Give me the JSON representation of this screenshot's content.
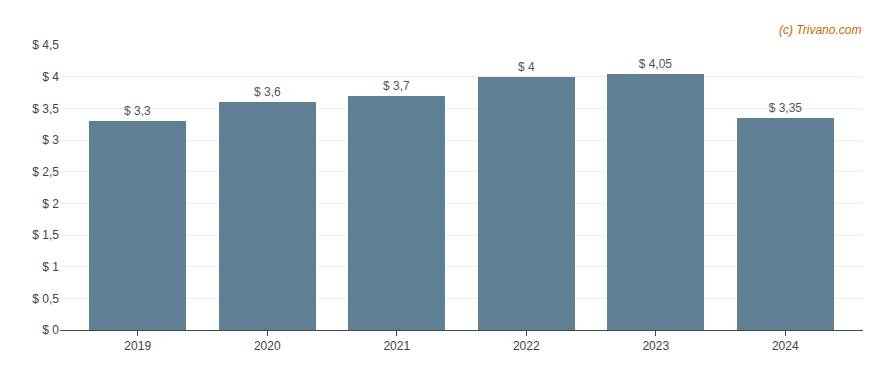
{
  "chart_data": {
    "type": "bar",
    "x": [
      2019,
      2020,
      2021,
      2022,
      2023,
      2024
    ],
    "values": [
      3.3,
      3.6,
      3.7,
      4.0,
      4.05,
      3.35
    ],
    "value_labels": [
      "$ 3,3",
      "$ 3,6",
      "$ 3,7",
      "$ 4",
      "$ 4,05",
      "$ 3,35"
    ],
    "data_labels": true,
    "color": "#5f7f93",
    "xlim": [
      2018.4,
      2024.6
    ],
    "xticks": [
      2019,
      2020,
      2021,
      2022,
      2023,
      2024
    ],
    "ylim": [
      0,
      4.5
    ],
    "yticks": [
      {
        "value": 0,
        "label": "$ 0"
      },
      {
        "value": 0.5,
        "label": "$ 0,5"
      },
      {
        "value": 1.0,
        "label": "$ 1"
      },
      {
        "value": 1.5,
        "label": "$ 1,5"
      },
      {
        "value": 2.0,
        "label": "$ 2"
      },
      {
        "value": 2.5,
        "label": "$ 2,5"
      },
      {
        "value": 3.0,
        "label": "$ 3"
      },
      {
        "value": 3.5,
        "label": "$ 3,5"
      },
      {
        "value": 4.0,
        "label": "$ 4"
      },
      {
        "value": 4.5,
        "label": "$ 4,5"
      }
    ],
    "grid": true,
    "annotations": [
      {
        "text": "(c) Trivano.com",
        "color": "#cc6600"
      }
    ]
  }
}
